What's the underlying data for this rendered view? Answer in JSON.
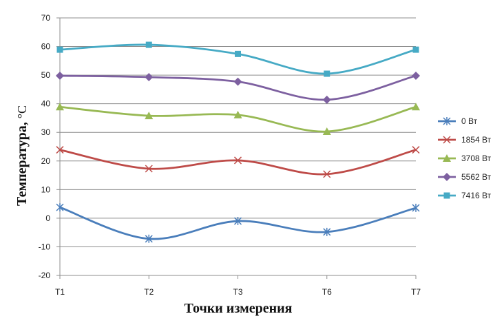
{
  "chart_data": {
    "type": "line",
    "xlabel": "Точки измерения",
    "ylabel": "Температура, ",
    "ylabel_unit": "°C",
    "categories": [
      "T1",
      "T2",
      "T3",
      "T6",
      "T7"
    ],
    "ylim": [
      -20,
      70
    ],
    "yticks": [
      "-20",
      "-10",
      "0",
      "10",
      "20",
      "30",
      "40",
      "50",
      "60",
      "70"
    ],
    "grid": true,
    "legend_position": "right",
    "series": [
      {
        "name": "0 Вт",
        "color": "#4a7ebb",
        "marker": "star",
        "values": [
          3.8,
          -7.2,
          -1.0,
          -4.8,
          3.6
        ]
      },
      {
        "name": "1854 Вт",
        "color": "#be4b48",
        "marker": "x",
        "values": [
          23.9,
          17.3,
          20.2,
          15.4,
          23.9
        ]
      },
      {
        "name": "3708 Вт",
        "color": "#98b954",
        "marker": "triangle",
        "values": [
          38.9,
          35.8,
          36.1,
          30.3,
          38.9
        ]
      },
      {
        "name": "5562 Вт",
        "color": "#7d60a0",
        "marker": "diamond",
        "values": [
          49.8,
          49.3,
          47.7,
          41.4,
          49.8
        ]
      },
      {
        "name": "7416 Вт",
        "color": "#46aac5",
        "marker": "square",
        "values": [
          58.9,
          60.6,
          57.4,
          50.5,
          58.9
        ]
      }
    ]
  }
}
